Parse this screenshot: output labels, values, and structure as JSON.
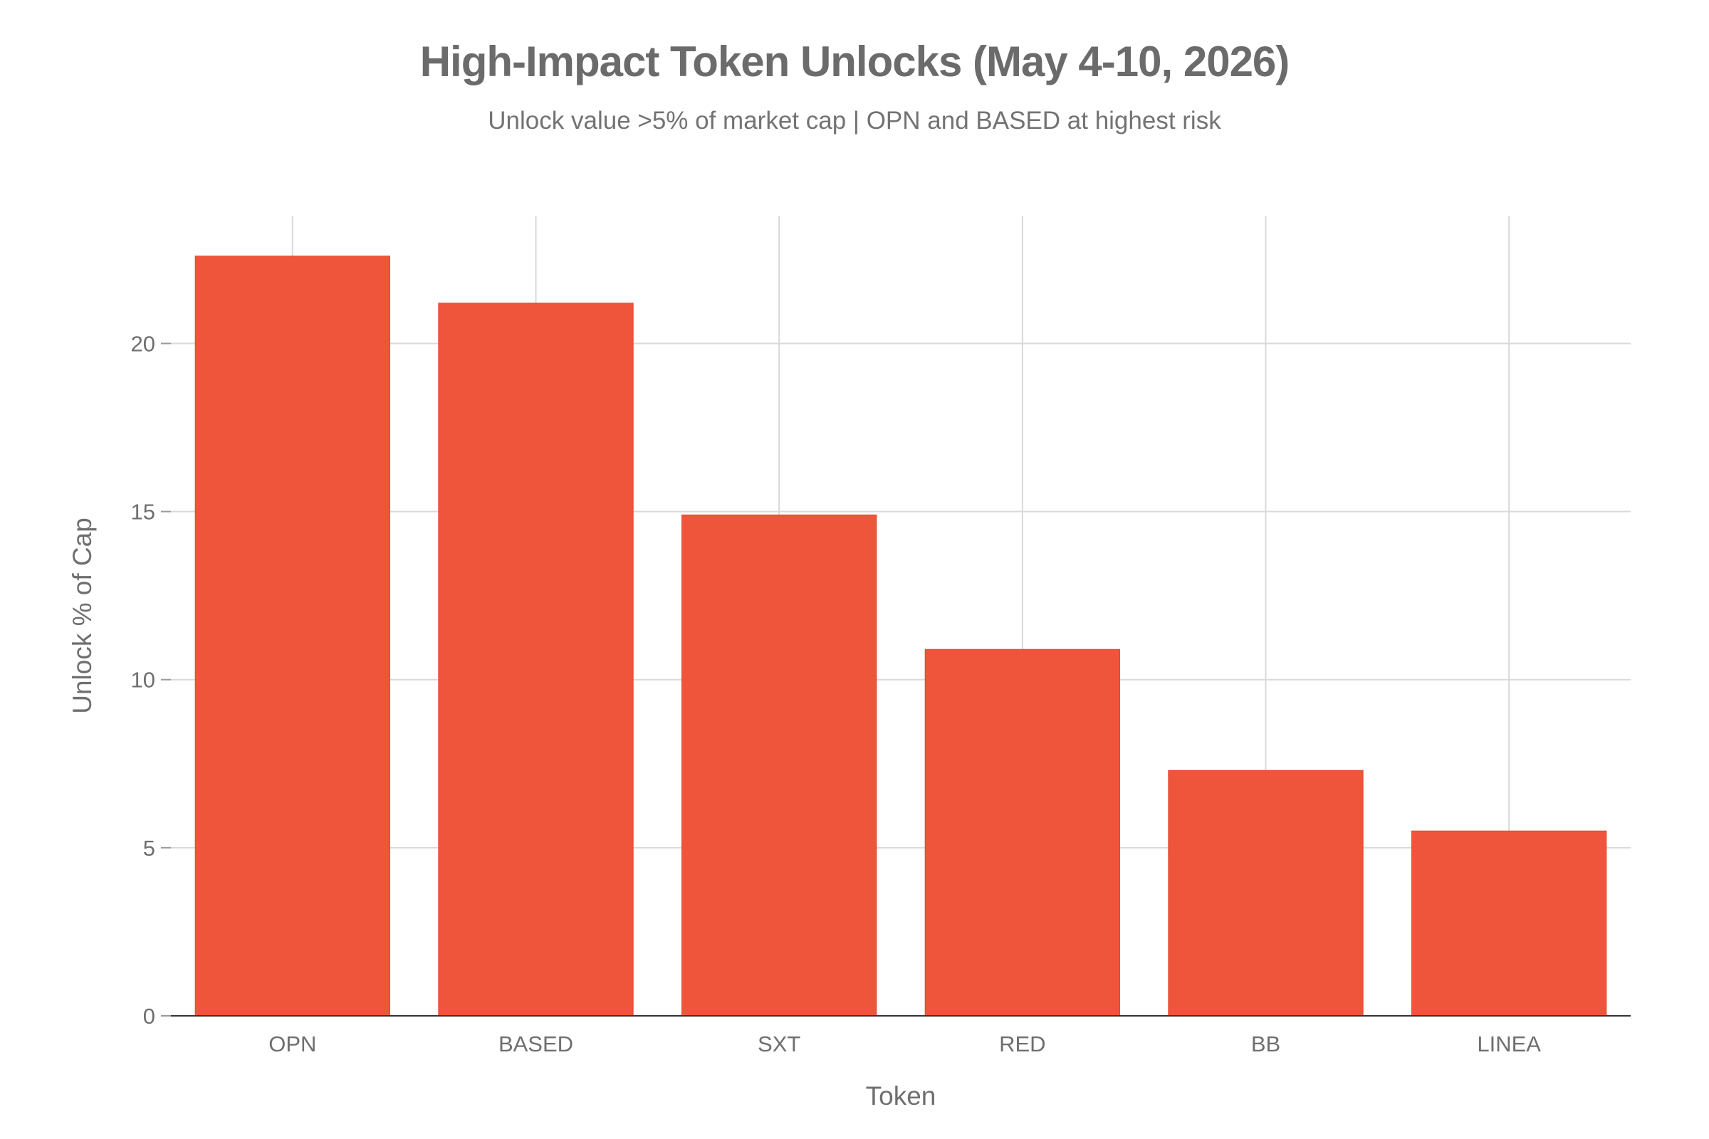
{
  "chart_data": {
    "type": "bar",
    "title": "High-Impact Token Unlocks (May 4-10, 2026)",
    "subtitle": "Unlock value >5% of market cap | OPN and BASED at highest risk",
    "xlabel": "Token",
    "ylabel": "Unlock % of Cap",
    "categories": [
      "OPN",
      "BASED",
      "SXT",
      "RED",
      "BB",
      "LINEA"
    ],
    "values": [
      22.6,
      21.2,
      14.9,
      10.9,
      7.3,
      5.5
    ],
    "ylim": [
      0,
      23.8
    ],
    "yticks": [
      0,
      5,
      10,
      15,
      20
    ],
    "grid": true,
    "legend": "none",
    "bar_color": "#EF553B"
  }
}
